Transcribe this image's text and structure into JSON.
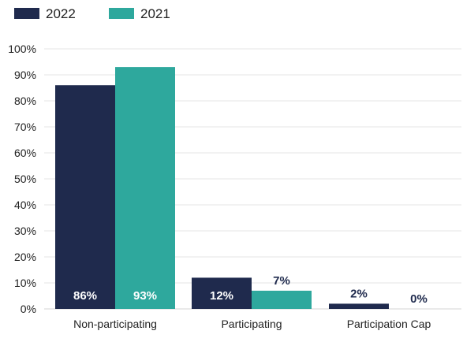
{
  "chart_data": {
    "type": "bar",
    "categories": [
      "Non-participating",
      "Participating",
      "Participation Cap"
    ],
    "series": [
      {
        "name": "2022",
        "values": [
          86,
          12,
          2
        ],
        "labels": [
          "86%",
          "12%",
          "2%"
        ],
        "color": "#1f2a4d"
      },
      {
        "name": "2021",
        "values": [
          93,
          7,
          0
        ],
        "labels": [
          "93%",
          "7%",
          "0%"
        ],
        "color": "#2ea89d"
      }
    ],
    "ylim": [
      0,
      100
    ],
    "yticks": [
      "0%",
      "10%",
      "20%",
      "30%",
      "40%",
      "50%",
      "60%",
      "70%",
      "80%",
      "90%",
      "100%"
    ],
    "title": "",
    "xlabel": "",
    "ylabel": "",
    "grid": true,
    "legend_position": "top-left",
    "label_inside_color": "#ffffff",
    "label_outside_color": "#1f2a4d"
  }
}
